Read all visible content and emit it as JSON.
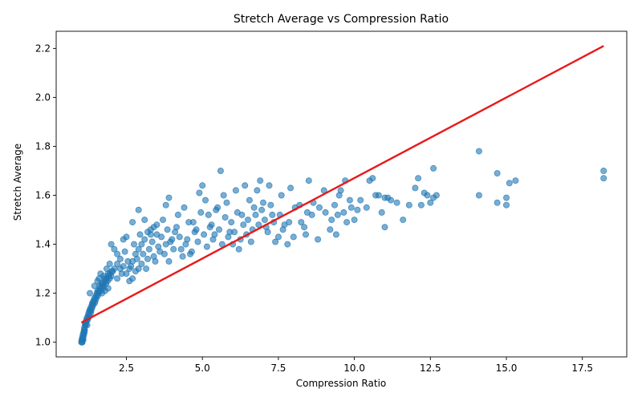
{
  "chart_data": {
    "type": "scatter",
    "title": "Stretch Average vs Compression Ratio",
    "xlabel": "Compression Ratio",
    "ylabel": "Stretch Average",
    "xlim": [
      0.19,
      18.96
    ],
    "ylim": [
      0.94,
      2.27
    ],
    "xticks": [
      2.5,
      5.0,
      7.5,
      10.0,
      12.5,
      15.0,
      17.5
    ],
    "xtick_labels": [
      "2.5",
      "5.0",
      "7.5",
      "10.0",
      "12.5",
      "15.0",
      "17.5"
    ],
    "yticks": [
      1.0,
      1.2,
      1.4,
      1.6,
      1.8,
      2.0,
      2.2
    ],
    "ytick_labels": [
      "1.0",
      "1.2",
      "1.4",
      "1.6",
      "1.8",
      "2.0",
      "2.2"
    ],
    "grid": false,
    "series": [
      {
        "kind": "scatter",
        "color": "#1f77b4",
        "alpha": 0.6,
        "points": [
          [
            1.02,
            1.0
          ],
          [
            1.03,
            1.01
          ],
          [
            1.04,
            1.0
          ],
          [
            1.05,
            1.02
          ],
          [
            1.06,
            1.01
          ],
          [
            1.07,
            1.03
          ],
          [
            1.08,
            1.02
          ],
          [
            1.09,
            1.04
          ],
          [
            1.1,
            1.03
          ],
          [
            1.11,
            1.05
          ],
          [
            1.12,
            1.06
          ],
          [
            1.13,
            1.05
          ],
          [
            1.14,
            1.07
          ],
          [
            1.15,
            1.08
          ],
          [
            1.16,
            1.07
          ],
          [
            1.18,
            1.09
          ],
          [
            1.2,
            1.1
          ],
          [
            1.22,
            1.09
          ],
          [
            1.24,
            1.11
          ],
          [
            1.26,
            1.12
          ],
          [
            1.28,
            1.11
          ],
          [
            1.3,
            1.13
          ],
          [
            1.32,
            1.14
          ],
          [
            1.34,
            1.13
          ],
          [
            1.36,
            1.15
          ],
          [
            1.38,
            1.16
          ],
          [
            1.4,
            1.15
          ],
          [
            1.42,
            1.17
          ],
          [
            1.45,
            1.18
          ],
          [
            1.48,
            1.17
          ],
          [
            1.5,
            1.19
          ],
          [
            1.53,
            1.2
          ],
          [
            1.56,
            1.19
          ],
          [
            1.6,
            1.21
          ],
          [
            1.63,
            1.22
          ],
          [
            1.66,
            1.21
          ],
          [
            1.7,
            1.23
          ],
          [
            1.73,
            1.24
          ],
          [
            1.76,
            1.23
          ],
          [
            1.8,
            1.25
          ],
          [
            1.84,
            1.26
          ],
          [
            1.88,
            1.25
          ],
          [
            1.92,
            1.27
          ],
          [
            1.96,
            1.28
          ],
          [
            2.0,
            1.27
          ],
          [
            2.05,
            1.29
          ],
          [
            2.1,
            1.3
          ],
          [
            1.05,
            1.0
          ],
          [
            1.08,
            1.01
          ],
          [
            1.12,
            1.04
          ],
          [
            1.17,
            1.08
          ],
          [
            1.21,
            1.07
          ],
          [
            1.25,
            1.1
          ],
          [
            1.29,
            1.13
          ],
          [
            1.33,
            1.12
          ],
          [
            1.37,
            1.14
          ],
          [
            1.41,
            1.16
          ],
          [
            1.46,
            1.16
          ],
          [
            1.51,
            1.18
          ],
          [
            1.55,
            1.21
          ],
          [
            1.58,
            1.2
          ],
          [
            1.62,
            1.23
          ],
          [
            1.68,
            1.24
          ],
          [
            1.72,
            1.22
          ],
          [
            1.78,
            1.26
          ],
          [
            1.83,
            1.24
          ],
          [
            1.9,
            1.28
          ],
          [
            1.95,
            1.26
          ],
          [
            2.02,
            1.29
          ],
          [
            1.3,
            1.2
          ],
          [
            1.45,
            1.23
          ],
          [
            1.55,
            1.25
          ],
          [
            1.65,
            1.28
          ],
          [
            1.75,
            1.27
          ],
          [
            1.85,
            1.3
          ],
          [
            1.95,
            1.32
          ],
          [
            1.6,
            1.26
          ],
          [
            1.7,
            1.2
          ],
          [
            1.8,
            1.21
          ],
          [
            1.9,
            1.22
          ],
          [
            2.0,
            1.4
          ],
          [
            2.1,
            1.38
          ],
          [
            2.2,
            1.36
          ],
          [
            2.3,
            1.34
          ],
          [
            2.4,
            1.42
          ],
          [
            2.5,
            1.43
          ],
          [
            2.2,
            1.26
          ],
          [
            2.3,
            1.3
          ],
          [
            2.4,
            1.31
          ],
          [
            2.5,
            1.28
          ],
          [
            2.6,
            1.3
          ],
          [
            2.7,
            1.33
          ],
          [
            2.8,
            1.36
          ],
          [
            2.9,
            1.38
          ],
          [
            3.0,
            1.4
          ],
          [
            3.1,
            1.42
          ],
          [
            3.2,
            1.45
          ],
          [
            3.3,
            1.44
          ],
          [
            3.4,
            1.47
          ],
          [
            3.5,
            1.48
          ],
          [
            2.6,
            1.25
          ],
          [
            2.7,
            1.26
          ],
          [
            2.8,
            1.29
          ],
          [
            2.9,
            1.3
          ],
          [
            3.0,
            1.32
          ],
          [
            3.2,
            1.34
          ],
          [
            3.4,
            1.35
          ],
          [
            3.6,
            1.37
          ],
          [
            3.8,
            1.4
          ],
          [
            4.0,
            1.42
          ],
          [
            2.7,
            1.49
          ],
          [
            2.9,
            1.54
          ],
          [
            3.1,
            1.5
          ],
          [
            3.3,
            1.46
          ],
          [
            3.5,
            1.44
          ],
          [
            3.7,
            1.5
          ],
          [
            3.9,
            1.59
          ],
          [
            3.8,
            1.56
          ],
          [
            3.9,
            1.33
          ],
          [
            4.1,
            1.45
          ],
          [
            4.2,
            1.52
          ],
          [
            4.3,
            1.38
          ],
          [
            4.4,
            1.55
          ],
          [
            4.5,
            1.42
          ],
          [
            4.6,
            1.36
          ],
          [
            4.7,
            1.49
          ],
          [
            4.8,
            1.46
          ],
          [
            4.9,
            1.61
          ],
          [
            5.0,
            1.64
          ],
          [
            5.1,
            1.58
          ],
          [
            5.2,
            1.52
          ],
          [
            5.3,
            1.48
          ],
          [
            5.4,
            1.44
          ],
          [
            5.5,
            1.55
          ],
          [
            5.6,
            1.7
          ],
          [
            5.7,
            1.6
          ],
          [
            5.8,
            1.57
          ],
          [
            5.9,
            1.45
          ],
          [
            6.0,
            1.4
          ],
          [
            6.1,
            1.62
          ],
          [
            6.2,
            1.38
          ],
          [
            6.3,
            1.52
          ],
          [
            6.4,
            1.64
          ],
          [
            6.5,
            1.5
          ],
          [
            6.6,
            1.41
          ],
          [
            6.7,
            1.55
          ],
          [
            6.8,
            1.62
          ],
          [
            6.9,
            1.66
          ],
          [
            7.0,
            1.57
          ],
          [
            7.1,
            1.47
          ],
          [
            7.2,
            1.64
          ],
          [
            7.3,
            1.52
          ],
          [
            7.4,
            1.41
          ],
          [
            7.5,
            1.43
          ],
          [
            7.6,
            1.6
          ],
          [
            7.7,
            1.48
          ],
          [
            7.8,
            1.4
          ],
          [
            7.9,
            1.63
          ],
          [
            8.0,
            1.43
          ],
          [
            8.2,
            1.56
          ],
          [
            8.4,
            1.44
          ],
          [
            8.5,
            1.66
          ],
          [
            8.6,
            1.52
          ],
          [
            8.8,
            1.42
          ],
          [
            9.0,
            1.62
          ],
          [
            9.2,
            1.46
          ],
          [
            9.4,
            1.44
          ],
          [
            9.5,
            1.6
          ],
          [
            9.7,
            1.66
          ],
          [
            9.9,
            1.55
          ],
          [
            10.0,
            1.5
          ],
          [
            10.2,
            1.58
          ],
          [
            10.5,
            1.66
          ],
          [
            10.6,
            1.67
          ],
          [
            10.8,
            1.6
          ],
          [
            11.0,
            1.47
          ],
          [
            11.0,
            1.59
          ],
          [
            11.2,
            1.58
          ],
          [
            11.6,
            1.5
          ],
          [
            11.8,
            1.56
          ],
          [
            12.0,
            1.63
          ],
          [
            12.1,
            1.67
          ],
          [
            12.2,
            1.56
          ],
          [
            12.3,
            1.61
          ],
          [
            12.5,
            1.57
          ],
          [
            12.6,
            1.71
          ],
          [
            12.7,
            1.6
          ],
          [
            14.1,
            1.78
          ],
          [
            14.1,
            1.6
          ],
          [
            14.7,
            1.69
          ],
          [
            14.7,
            1.57
          ],
          [
            15.0,
            1.56
          ],
          [
            15.1,
            1.65
          ],
          [
            15.3,
            1.66
          ],
          [
            15.0,
            1.59
          ],
          [
            18.2,
            1.67
          ],
          [
            18.2,
            1.7
          ],
          [
            2.2,
            1.32
          ],
          [
            2.35,
            1.28
          ],
          [
            2.45,
            1.37
          ],
          [
            2.55,
            1.33
          ],
          [
            2.65,
            1.31
          ],
          [
            2.75,
            1.4
          ],
          [
            2.85,
            1.34
          ],
          [
            2.95,
            1.44
          ],
          [
            3.05,
            1.36
          ],
          [
            3.15,
            1.3
          ],
          [
            3.25,
            1.38
          ],
          [
            3.35,
            1.41
          ],
          [
            3.45,
            1.33
          ],
          [
            3.55,
            1.39
          ],
          [
            3.65,
            1.43
          ],
          [
            3.75,
            1.36
          ],
          [
            3.85,
            1.46
          ],
          [
            3.95,
            1.41
          ],
          [
            4.05,
            1.38
          ],
          [
            4.15,
            1.47
          ],
          [
            4.25,
            1.43
          ],
          [
            4.35,
            1.35
          ],
          [
            4.45,
            1.4
          ],
          [
            4.55,
            1.49
          ],
          [
            4.65,
            1.37
          ],
          [
            4.75,
            1.45
          ],
          [
            4.85,
            1.41
          ],
          [
            4.95,
            1.53
          ],
          [
            5.05,
            1.44
          ],
          [
            5.15,
            1.39
          ],
          [
            5.25,
            1.47
          ],
          [
            5.35,
            1.42
          ],
          [
            5.45,
            1.54
          ],
          [
            5.55,
            1.46
          ],
          [
            5.65,
            1.4
          ],
          [
            5.75,
            1.51
          ],
          [
            5.85,
            1.43
          ],
          [
            5.95,
            1.49
          ],
          [
            6.05,
            1.45
          ],
          [
            6.15,
            1.53
          ],
          [
            6.25,
            1.42
          ],
          [
            6.35,
            1.48
          ],
          [
            6.45,
            1.44
          ],
          [
            6.55,
            1.58
          ],
          [
            6.65,
            1.46
          ],
          [
            6.75,
            1.52
          ],
          [
            6.85,
            1.48
          ],
          [
            6.95,
            1.54
          ],
          [
            7.05,
            1.5
          ],
          [
            7.15,
            1.45
          ],
          [
            7.25,
            1.56
          ],
          [
            7.35,
            1.49
          ],
          [
            7.55,
            1.52
          ],
          [
            7.65,
            1.46
          ],
          [
            7.85,
            1.49
          ],
          [
            8.05,
            1.55
          ],
          [
            8.25,
            1.49
          ],
          [
            8.35,
            1.47
          ],
          [
            8.45,
            1.53
          ],
          [
            8.65,
            1.57
          ],
          [
            8.85,
            1.55
          ],
          [
            9.05,
            1.53
          ],
          [
            9.25,
            1.5
          ],
          [
            9.35,
            1.56
          ],
          [
            9.45,
            1.52
          ],
          [
            9.55,
            1.62
          ],
          [
            9.65,
            1.53
          ],
          [
            9.75,
            1.49
          ],
          [
            9.85,
            1.58
          ],
          [
            10.1,
            1.54
          ],
          [
            10.4,
            1.55
          ],
          [
            10.7,
            1.6
          ],
          [
            10.9,
            1.53
          ],
          [
            11.1,
            1.59
          ],
          [
            11.4,
            1.57
          ],
          [
            12.4,
            1.6
          ],
          [
            12.6,
            1.59
          ]
        ]
      },
      {
        "kind": "line",
        "color": "#e8191a",
        "points": [
          [
            1.02,
            1.08
          ],
          [
            18.2,
            2.21
          ]
        ]
      }
    ]
  }
}
